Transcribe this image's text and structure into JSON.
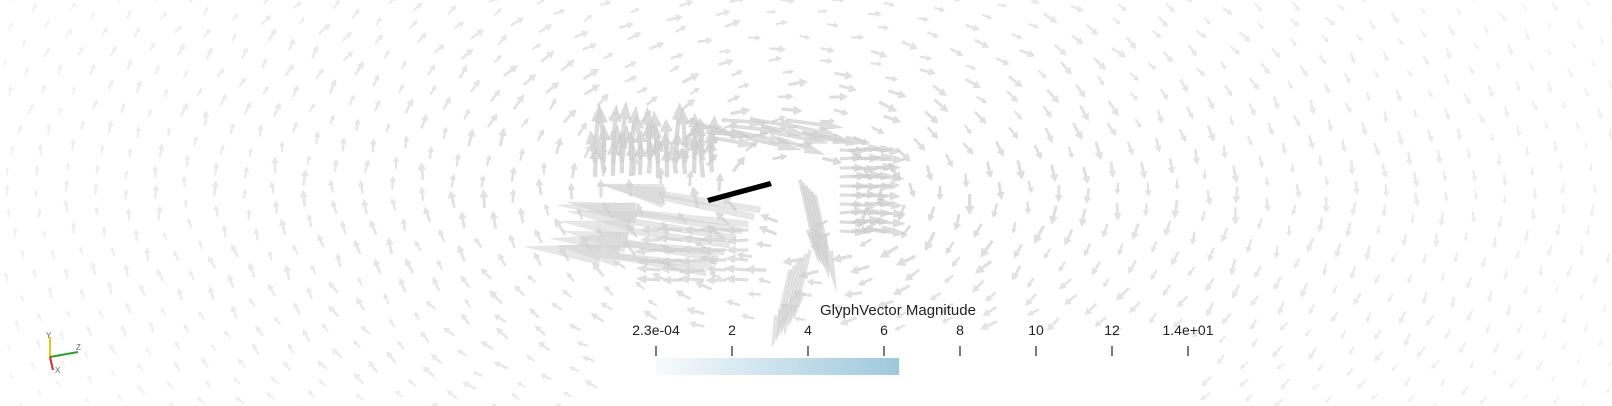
{
  "colors": {
    "background": "#ffffff",
    "glyph": "#d2d2d2",
    "glyph_stroke": "#b9b9b9",
    "plate": "#000000",
    "colorbar_start": "#f7fbfd",
    "colorbar_end": "#9ec8dc",
    "axis_x": "#d62728",
    "axis_y": "#e6c619",
    "axis_z": "#2ca02c"
  },
  "scalar_bar": {
    "title": "GlyphVector Magnitude",
    "ticks": [
      {
        "label": "2.3e-04",
        "value": 0.00023
      },
      {
        "label": "2",
        "value": 2
      },
      {
        "label": "4",
        "value": 4
      },
      {
        "label": "6",
        "value": 6
      },
      {
        "label": "8",
        "value": 8
      },
      {
        "label": "10",
        "value": 10
      },
      {
        "label": "12",
        "value": 12
      },
      {
        "label": "1.4e+01",
        "value": 14
      }
    ],
    "range": [
      0.00023,
      14
    ],
    "filled_to": 6.4
  },
  "orientation_axes": {
    "x": "X",
    "y": "Y",
    "z": "Z"
  },
  "icons": {
    "axes": "orientation-axes-icon"
  }
}
